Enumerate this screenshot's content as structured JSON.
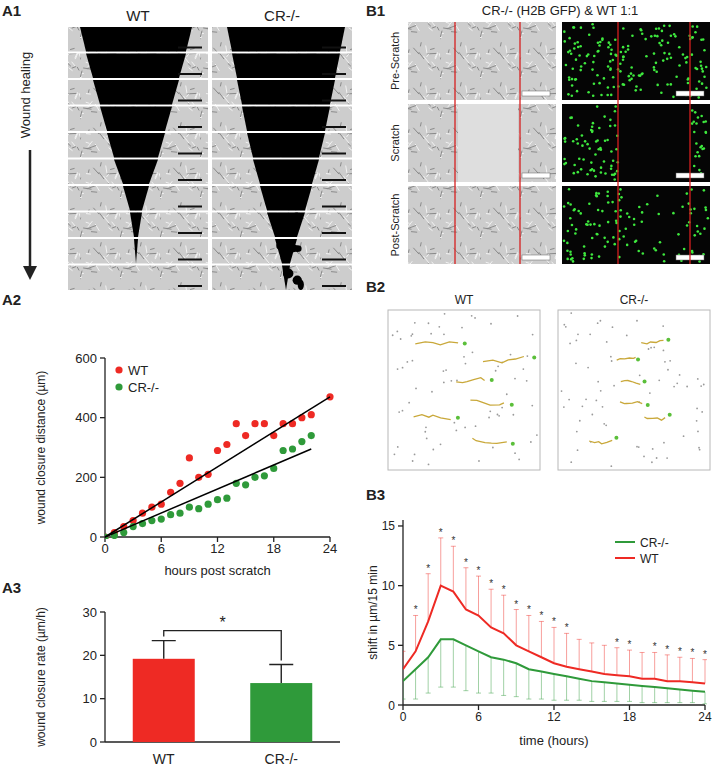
{
  "figure": {
    "A1": {
      "label": "A1",
      "columns": [
        "WT",
        "CR-/-"
      ],
      "arrow_label": "Wound healing"
    },
    "B1": {
      "label": "B1",
      "title": "CR-/- (H2B GFP) & WT 1:1",
      "rows": [
        "Pre-Scratch",
        "Scratch",
        "Post-Scratch"
      ]
    },
    "B2": {
      "label": "B2",
      "columns": [
        "WT",
        "CR-/-"
      ]
    }
  },
  "chart_data": [
    {
      "type": "scatter",
      "panel_label": "A2",
      "x_label": "hours post scratch",
      "y_label": "wound closure distance (µm)",
      "xlim": [
        0,
        24
      ],
      "ylim": [
        0,
        600
      ],
      "xticks": [
        0,
        6,
        12,
        18,
        24
      ],
      "yticks": [
        0,
        200,
        400,
        600
      ],
      "legend": "upper left",
      "series": [
        {
          "name": "WT",
          "color": "#ee2a24",
          "marker": "circle",
          "x": [
            0,
            1,
            2,
            3,
            4,
            5,
            6,
            7,
            8,
            9,
            10,
            11,
            12,
            13,
            14,
            15,
            16,
            17,
            18,
            19,
            20,
            21,
            22,
            24
          ],
          "values": [
            0,
            15,
            35,
            55,
            80,
            100,
            110,
            150,
            180,
            265,
            200,
            210,
            290,
            310,
            380,
            340,
            380,
            380,
            340,
            380,
            380,
            400,
            410,
            470
          ]
        },
        {
          "name": "CR-/-",
          "color": "#2f9a3a",
          "marker": "circle",
          "x": [
            0,
            1,
            2,
            3,
            4,
            5,
            6,
            7,
            8,
            9,
            10,
            11,
            12,
            13,
            14,
            15,
            16,
            17,
            18,
            19,
            20,
            21,
            22
          ],
          "values": [
            0,
            5,
            15,
            35,
            45,
            55,
            60,
            75,
            80,
            100,
            95,
            110,
            125,
            130,
            180,
            175,
            200,
            205,
            230,
            290,
            295,
            320,
            340
          ]
        },
        {
          "type": "line",
          "color": "#000000",
          "x": [
            0,
            24
          ],
          "values": [
            0,
            470
          ]
        },
        {
          "type": "line",
          "color": "#000000",
          "x": [
            0,
            22
          ],
          "values": [
            0,
            295
          ]
        }
      ]
    },
    {
      "type": "bar",
      "panel_label": "A3",
      "y_label": "wound closure rate (µm/h)",
      "categories": [
        "WT",
        "CR-/-"
      ],
      "values": [
        19.2,
        13.6
      ],
      "errors": [
        4.2,
        4.3
      ],
      "colors": [
        "#ee2a24",
        "#2f9a3a"
      ],
      "ylim": [
        0,
        30
      ],
      "yticks": [
        0,
        10,
        20,
        30
      ],
      "significance": "*"
    },
    {
      "type": "line",
      "panel_label": "B3",
      "x_label": "time (hours)",
      "y_label": "shift in µm/15 min",
      "xlim": [
        0,
        24
      ],
      "ylim": [
        0,
        15.5
      ],
      "xticks": [
        0,
        6,
        12,
        18,
        24
      ],
      "yticks": [
        0,
        5,
        10,
        15
      ],
      "legend": "upper right",
      "series": [
        {
          "name": "CR-/-",
          "color": "#2f9a3a",
          "x": [
            0,
            1,
            2,
            3,
            4,
            5,
            6,
            7,
            8,
            9,
            10,
            11,
            12,
            13,
            14,
            15,
            16,
            17,
            18,
            19,
            20,
            21,
            22,
            23,
            24
          ],
          "values": [
            2,
            3,
            4,
            5.5,
            5.5,
            5,
            4.5,
            4,
            3.8,
            3.5,
            3,
            2.8,
            2.6,
            2.4,
            2.2,
            2,
            1.9,
            1.8,
            1.7,
            1.6,
            1.5,
            1.4,
            1.3,
            1.2,
            1.1
          ],
          "errors": [
            1.5,
            2.5,
            3,
            4,
            4,
            3.8,
            3.5,
            3,
            3,
            2.8,
            2.5,
            2.3,
            2.2,
            2,
            1.8,
            1.7,
            1.6,
            1.5,
            1.4,
            1.4,
            1.3,
            1.2,
            1.1,
            1,
            1
          ]
        },
        {
          "name": "WT",
          "color": "#ee2a24",
          "x": [
            0,
            1,
            2,
            3,
            4,
            5,
            6,
            7,
            8,
            9,
            10,
            11,
            12,
            13,
            14,
            15,
            16,
            17,
            18,
            19,
            20,
            21,
            22,
            23,
            24
          ],
          "values": [
            3,
            4.5,
            7,
            10,
            9.5,
            8,
            7.5,
            6.5,
            6,
            5,
            4.5,
            4,
            3.5,
            3.2,
            3,
            2.8,
            2.6,
            2.5,
            2.4,
            2.2,
            2.2,
            2,
            2,
            1.9,
            1.8
          ],
          "errors": [
            1.5,
            3,
            4,
            4,
            3.8,
            3.5,
            3.3,
            3.2,
            3.2,
            3,
            3,
            3,
            3,
            2.8,
            2.5,
            2.4,
            2.4,
            2.3,
            2.2,
            2.2,
            2.2,
            2.2,
            2,
            2,
            2
          ],
          "significance": [
            null,
            "*",
            "*",
            "*",
            "*",
            "*",
            "*",
            "*",
            "*",
            "*",
            "*",
            "*",
            "*",
            "*",
            null,
            null,
            null,
            "*",
            "*",
            null,
            "*",
            "*",
            "*",
            "*",
            "*"
          ]
        }
      ]
    }
  ]
}
